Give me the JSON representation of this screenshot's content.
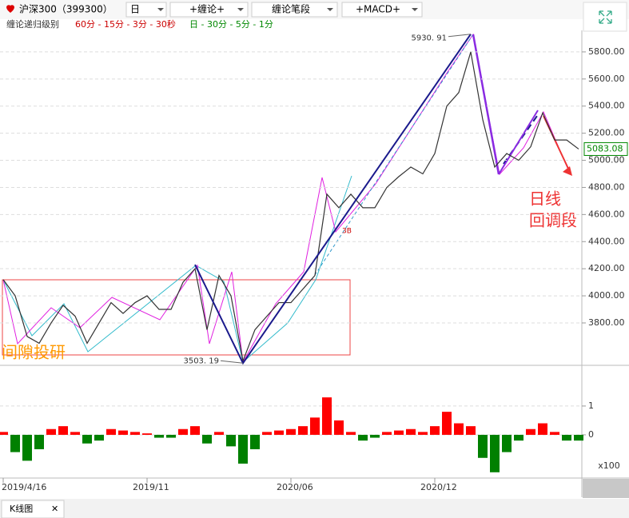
{
  "toolbar": {
    "symbol": "沪深300（399300）",
    "period": "日",
    "chanlun": "+缠论+",
    "segments": "缠论笔段",
    "indicator": "+MACD+"
  },
  "legend": {
    "label": "缠论递归级别",
    "minor": "60分 - 15分 - 3分 - 30秒",
    "major": "日 - 30分 - 5分 - 1分"
  },
  "tab": "K线图",
  "watermark": "间隙投研",
  "chart_data": [
    {
      "type": "line",
      "color": "#333333",
      "categories": [
        "2019/4/16",
        null,
        null,
        null,
        null,
        null,
        null,
        null,
        null,
        null,
        null,
        null,
        "2019/11",
        null,
        null,
        null,
        null,
        null,
        null,
        null,
        null,
        null,
        null,
        null,
        "2020/06",
        null,
        null,
        null,
        null,
        null,
        null,
        null,
        null,
        null,
        null,
        null,
        "2020/12",
        null,
        null,
        null,
        null,
        null,
        null,
        null,
        null,
        null,
        null,
        null,
        null
      ],
      "values": [
        4120,
        4000,
        3700,
        3650,
        3800,
        3930,
        3850,
        3650,
        3800,
        3950,
        3870,
        3950,
        4000,
        3900,
        3900,
        4100,
        4200,
        3750,
        4150,
        4000,
        3520,
        3750,
        3850,
        3950,
        3950,
        4050,
        4150,
        4750,
        4650,
        4750,
        4650,
        4650,
        4800,
        4880,
        4950,
        4900,
        5050,
        5400,
        5500,
        5800,
        5300,
        4950,
        5050,
        5000,
        5100,
        5350,
        5150,
        5150,
        5083.08
      ],
      "last_label": "5083.08",
      "ylim": [
        3499,
        5947
      ],
      "yticks": [
        {
          "value": 3800,
          "label": "3800.00"
        },
        {
          "value": 4000,
          "label": "4000.00"
        },
        {
          "value": 4200,
          "label": "4200.00"
        },
        {
          "value": 4400,
          "label": "4400.00"
        },
        {
          "value": 4600,
          "label": "4600.00"
        },
        {
          "value": 4800,
          "label": "4800.00"
        },
        {
          "value": 5000,
          "label": "5000.00"
        },
        {
          "value": 5200,
          "label": "5200.00"
        },
        {
          "value": 5400,
          "label": "5400.00"
        },
        {
          "value": 5600,
          "label": "5600.00"
        },
        {
          "value": 5800,
          "label": "5800.00"
        }
      ],
      "grid": true,
      "pivots": {
        "color": "#1a1a8c",
        "x": [
          16,
          20,
          39
        ],
        "values": [
          4230,
          3503.19,
          5930.91
        ],
        "value_labels": [
          null,
          "3503. 19",
          "5930. 91"
        ]
      },
      "annotations": [
        {
          "text": "日线"
        },
        {
          "text": "回调段"
        },
        {
          "text": "3B"
        }
      ]
    },
    {
      "type": "bar",
      "up_color": "#ff0000",
      "down_color": "#008000",
      "values": [
        0.1,
        -0.6,
        -0.9,
        -0.5,
        0.2,
        0.3,
        0.1,
        -0.3,
        -0.2,
        0.2,
        0.15,
        0.1,
        0.05,
        -0.1,
        -0.1,
        0.2,
        0.3,
        -0.3,
        0.1,
        -0.4,
        -1.0,
        -0.5,
        0.1,
        0.15,
        0.2,
        0.3,
        0.6,
        1.3,
        0.5,
        0.1,
        -0.2,
        -0.1,
        0.1,
        0.15,
        0.2,
        0.1,
        0.3,
        0.8,
        0.4,
        0.3,
        -0.8,
        -1.3,
        -0.6,
        -0.2,
        0.2,
        0.4,
        0.1,
        -0.2,
        -0.2
      ],
      "ylim": [
        -1.5,
        2.33
      ],
      "yticks": [
        0,
        1
      ],
      "unit": "x100"
    }
  ]
}
